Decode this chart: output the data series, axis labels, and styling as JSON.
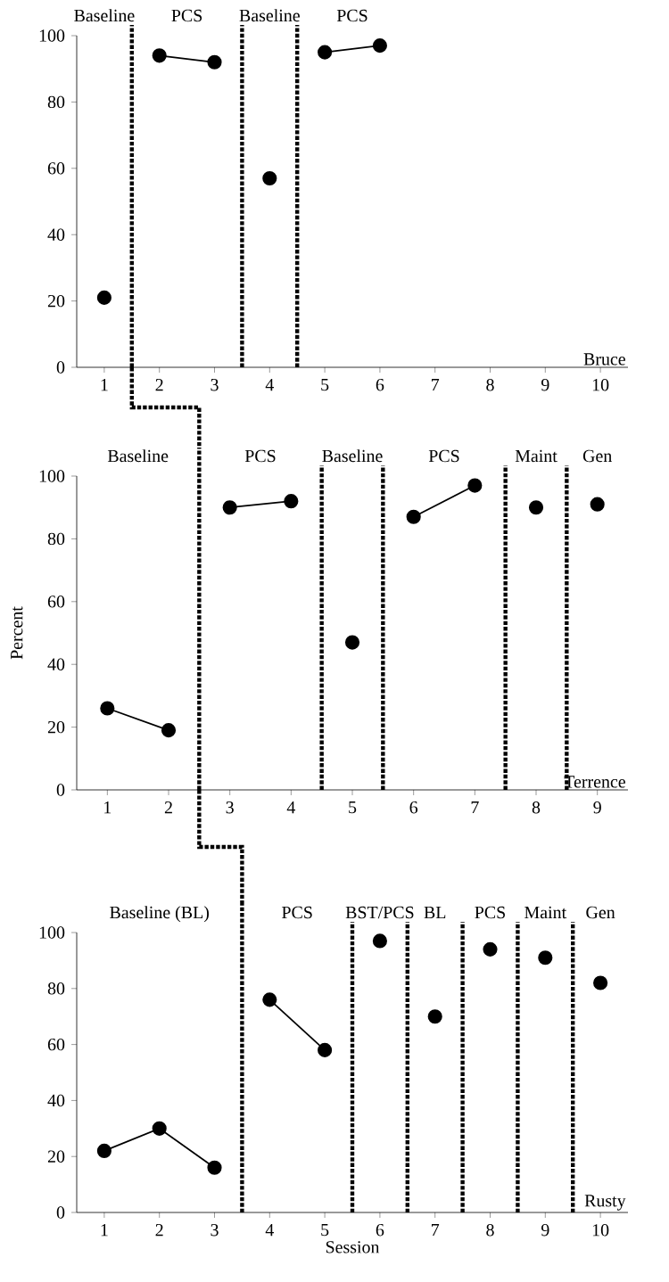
{
  "chart_data": [
    {
      "type": "line",
      "xlim": [
        0.5,
        10.5
      ],
      "xticks": [
        1,
        2,
        3,
        4,
        5,
        6,
        7,
        8,
        9,
        10
      ],
      "ylim": [
        0,
        100
      ],
      "yticks": [
        0,
        20,
        40,
        60,
        80,
        100
      ],
      "marker": "circle",
      "line_style": "solid",
      "series": [
        {
          "color": "#000000",
          "x": [
            1
          ],
          "values": [
            21
          ]
        },
        {
          "color": "#000000",
          "x": [
            2,
            3
          ],
          "values": [
            94,
            92
          ]
        },
        {
          "color": "#000000",
          "x": [
            4
          ],
          "values": [
            57
          ]
        },
        {
          "color": "#000000",
          "x": [
            5,
            6
          ],
          "values": [
            95,
            97
          ]
        }
      ],
      "ref_lines": [
        {
          "axis": "x",
          "value": 1.5,
          "line_style": "dotted"
        },
        {
          "axis": "x",
          "value": 3.5,
          "line_style": "dotted"
        },
        {
          "axis": "x",
          "value": 4.5,
          "line_style": "dotted"
        }
      ],
      "annotations": [
        "Baseline",
        "PCS",
        "Baseline",
        "PCS",
        "Bruce"
      ]
    },
    {
      "type": "line",
      "ylabel": "Percent",
      "xlim": [
        0.5,
        9.5
      ],
      "xticks": [
        1,
        2,
        3,
        4,
        5,
        6,
        7,
        8,
        9
      ],
      "ylim": [
        0,
        100
      ],
      "yticks": [
        0,
        20,
        40,
        60,
        80,
        100
      ],
      "marker": "circle",
      "line_style": "solid",
      "series": [
        {
          "color": "#000000",
          "x": [
            1,
            2
          ],
          "values": [
            26,
            19
          ]
        },
        {
          "color": "#000000",
          "x": [
            3,
            4
          ],
          "values": [
            90,
            92
          ]
        },
        {
          "color": "#000000",
          "x": [
            5
          ],
          "values": [
            47
          ]
        },
        {
          "color": "#000000",
          "x": [
            6,
            7
          ],
          "values": [
            87,
            97
          ]
        },
        {
          "color": "#000000",
          "x": [
            8
          ],
          "values": [
            90
          ]
        },
        {
          "color": "#000000",
          "x": [
            9
          ],
          "values": [
            91
          ]
        }
      ],
      "ref_lines": [
        {
          "axis": "x",
          "value": 2.5,
          "line_style": "dotted"
        },
        {
          "axis": "x",
          "value": 4.5,
          "line_style": "dotted"
        },
        {
          "axis": "x",
          "value": 5.5,
          "line_style": "dotted"
        },
        {
          "axis": "x",
          "value": 7.5,
          "line_style": "dotted"
        },
        {
          "axis": "x",
          "value": 8.5,
          "line_style": "dotted"
        }
      ],
      "annotations": [
        "Baseline",
        "PCS",
        "Baseline",
        "PCS",
        "Maint",
        "Gen",
        "Terrence"
      ]
    },
    {
      "type": "line",
      "xlabel": "Session",
      "xlim": [
        0.5,
        10.5
      ],
      "xticks": [
        1,
        2,
        3,
        4,
        5,
        6,
        7,
        8,
        9,
        10
      ],
      "ylim": [
        0,
        100
      ],
      "yticks": [
        0,
        20,
        40,
        60,
        80,
        100
      ],
      "marker": "circle",
      "line_style": "solid",
      "series": [
        {
          "color": "#000000",
          "x": [
            1,
            2,
            3
          ],
          "values": [
            22,
            30,
            16
          ]
        },
        {
          "color": "#000000",
          "x": [
            4,
            5
          ],
          "values": [
            76,
            58
          ]
        },
        {
          "color": "#000000",
          "x": [
            6
          ],
          "values": [
            97
          ]
        },
        {
          "color": "#000000",
          "x": [
            7
          ],
          "values": [
            70
          ]
        },
        {
          "color": "#000000",
          "x": [
            8
          ],
          "values": [
            94
          ]
        },
        {
          "color": "#000000",
          "x": [
            9
          ],
          "values": [
            91
          ]
        },
        {
          "color": "#000000",
          "x": [
            10
          ],
          "values": [
            82
          ]
        }
      ],
      "ref_lines": [
        {
          "axis": "x",
          "value": 3.5,
          "line_style": "dotted"
        },
        {
          "axis": "x",
          "value": 5.5,
          "line_style": "dotted"
        },
        {
          "axis": "x",
          "value": 6.5,
          "line_style": "dotted"
        },
        {
          "axis": "x",
          "value": 7.5,
          "line_style": "dotted"
        },
        {
          "axis": "x",
          "value": 8.5,
          "line_style": "dotted"
        },
        {
          "axis": "x",
          "value": 9.5,
          "line_style": "dotted"
        }
      ],
      "annotations": [
        "Baseline (BL)",
        "PCS",
        "BST/PCS",
        "BL",
        "PCS",
        "Maint",
        "Gen",
        "Rusty"
      ]
    }
  ]
}
